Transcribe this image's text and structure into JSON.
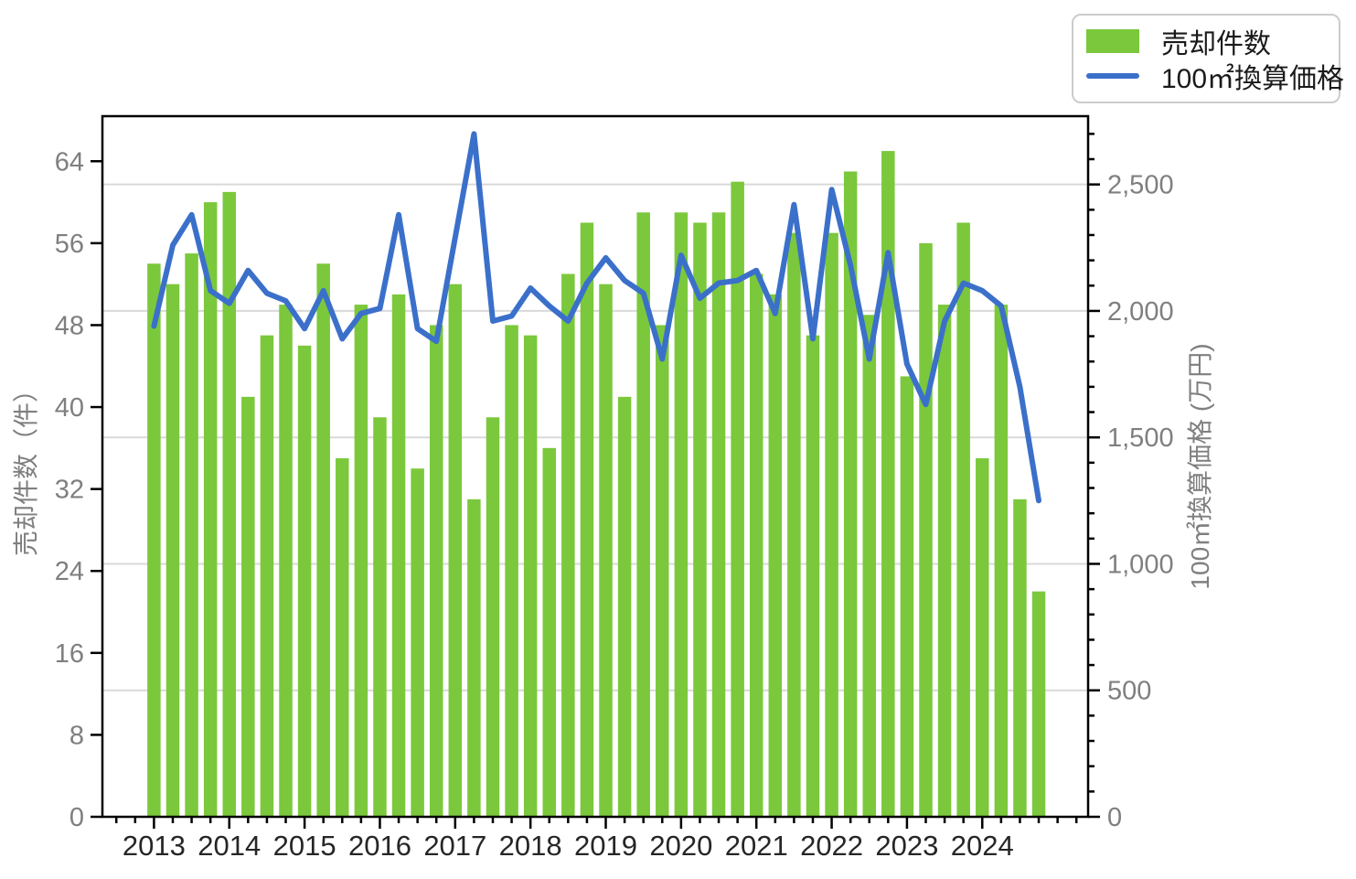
{
  "legend": {
    "items": [
      {
        "label": "売却件数",
        "marker": "bar-swatch",
        "color": "#7bc83c"
      },
      {
        "label": "100㎡換算価格",
        "marker": "line-swatch",
        "color": "#3b70ca"
      }
    ]
  },
  "left_axis": {
    "title": "売却件数（件）",
    "tick_labels": [
      "0",
      "8",
      "16",
      "24",
      "32",
      "40",
      "48",
      "56",
      "64"
    ],
    "ticks": [
      0,
      8,
      16,
      24,
      32,
      40,
      48,
      56,
      64
    ],
    "max": 68.4,
    "label_color": "#7f7f7f"
  },
  "right_axis": {
    "title": "100㎡換算価格 (万円)",
    "tick_labels": [
      "0",
      "500",
      "1,000",
      "1,500",
      "2,000",
      "2,500"
    ],
    "ticks": [
      0,
      500,
      1000,
      1500,
      2000,
      2500
    ],
    "minor_tick_step": 100,
    "minor_tick_max": 2700,
    "max": 2770,
    "label_color": "#7f7f7f"
  },
  "x_axis": {
    "year_labels": [
      "2013",
      "2014",
      "2015",
      "2016",
      "2017",
      "2018",
      "2019",
      "2020",
      "2021",
      "2022",
      "2023",
      "2024"
    ],
    "label_color": "#262626"
  },
  "chart_data": {
    "type": "bar",
    "subtype": "bar+line dual axis",
    "title": "",
    "xlabel": "",
    "ylabel_left": "売却件数（件）",
    "ylabel_right": "100㎡換算価格 (万円)",
    "ylim_left": [
      0,
      68.4
    ],
    "ylim_right": [
      0,
      2770
    ],
    "grid": "horizontal gridlines at right-axis 500 intervals, color #d9d9d9",
    "legend_position": "top right, outside plot",
    "categories": [
      "2013Q1",
      "2013Q2",
      "2013Q3",
      "2013Q4",
      "2014Q1",
      "2014Q2",
      "2014Q3",
      "2014Q4",
      "2015Q1",
      "2015Q2",
      "2015Q3",
      "2015Q4",
      "2016Q1",
      "2016Q2",
      "2016Q3",
      "2016Q4",
      "2017Q1",
      "2017Q2",
      "2017Q3",
      "2017Q4",
      "2018Q1",
      "2018Q2",
      "2018Q3",
      "2018Q4",
      "2019Q1",
      "2019Q2",
      "2019Q3",
      "2019Q4",
      "2020Q1",
      "2020Q2",
      "2020Q3",
      "2020Q4",
      "2021Q1",
      "2021Q2",
      "2021Q3",
      "2021Q4",
      "2022Q1",
      "2022Q2",
      "2022Q3",
      "2022Q4",
      "2023Q1",
      "2023Q2",
      "2023Q3",
      "2023Q4",
      "2024Q1",
      "2024Q2",
      "2024Q3",
      "2024Q4"
    ],
    "series": [
      {
        "name": "売却件数",
        "type": "bar",
        "yaxis": "left",
        "color": "#7bc83c",
        "values": [
          54,
          52,
          55,
          60,
          61,
          41,
          47,
          50,
          46,
          54,
          35,
          50,
          39,
          51,
          34,
          48,
          52,
          31,
          39,
          48,
          47,
          36,
          53,
          58,
          52,
          41,
          59,
          48,
          59,
          58,
          59,
          62,
          53,
          51,
          57,
          47,
          57,
          63,
          49,
          65,
          43,
          56,
          50,
          58,
          35,
          50,
          31,
          22
        ]
      },
      {
        "name": "100㎡換算価格",
        "type": "line",
        "yaxis": "right",
        "color": "#3b70ca",
        "values": [
          1940,
          2260,
          2380,
          2080,
          2030,
          2160,
          2070,
          2040,
          1930,
          2080,
          1890,
          1990,
          2010,
          2380,
          1930,
          1880,
          2290,
          2700,
          1960,
          1980,
          2090,
          2020,
          1960,
          2110,
          2210,
          2120,
          2070,
          1810,
          2220,
          2050,
          2110,
          2120,
          2160,
          1990,
          2420,
          1890,
          2480,
          2180,
          1810,
          2230,
          1790,
          1630,
          1960,
          2110,
          2080,
          2020,
          1700,
          1250
        ]
      }
    ],
    "gridline_color": "#d9d9d9"
  }
}
